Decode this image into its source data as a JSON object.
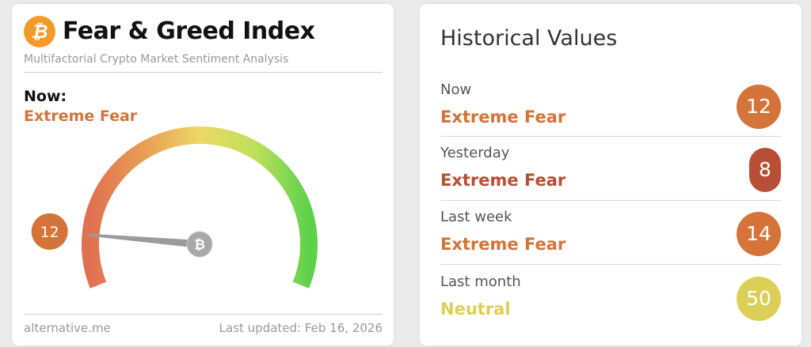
{
  "left": {
    "title": "Fear & Greed Index",
    "subtitle": "Multifactorial Crypto Market Sentiment Analysis",
    "now_label": "Now:",
    "now_classification": "Extreme Fear",
    "gauge": {
      "value": 12,
      "value_label": "12",
      "min": 0,
      "max": 100,
      "badge_color": "#d4743a",
      "needle_icon": "bitcoin-icon"
    },
    "logo_icon": "bitcoin-icon",
    "footer_source": "alternative.me",
    "footer_updated": "Last updated: Feb 16, 2026"
  },
  "right": {
    "title": "Historical Values",
    "rows": [
      {
        "label": "Now",
        "classification": "Extreme Fear",
        "value": "12",
        "color": "#d4743a"
      },
      {
        "label": "Yesterday",
        "classification": "Extreme Fear",
        "value": "8",
        "color": "#b94e36"
      },
      {
        "label": "Last week",
        "classification": "Extreme Fear",
        "value": "14",
        "color": "#d4743a"
      },
      {
        "label": "Last month",
        "classification": "Neutral",
        "value": "50",
        "color": "#dccf55"
      }
    ]
  }
}
